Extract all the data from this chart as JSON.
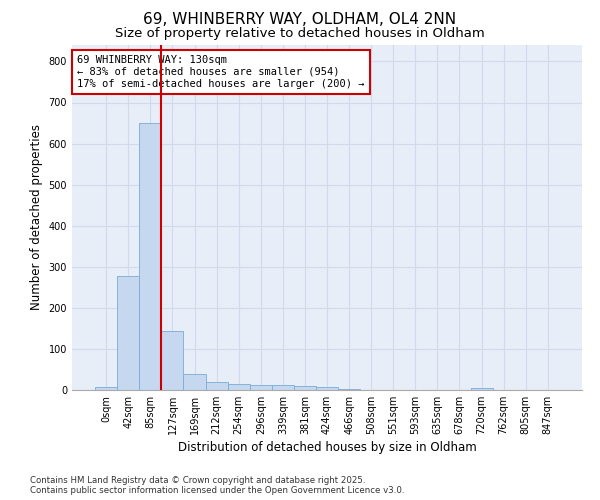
{
  "title1": "69, WHINBERRY WAY, OLDHAM, OL4 2NN",
  "title2": "Size of property relative to detached houses in Oldham",
  "xlabel": "Distribution of detached houses by size in Oldham",
  "ylabel": "Number of detached properties",
  "categories": [
    "0sqm",
    "42sqm",
    "85sqm",
    "127sqm",
    "169sqm",
    "212sqm",
    "254sqm",
    "296sqm",
    "339sqm",
    "381sqm",
    "424sqm",
    "466sqm",
    "508sqm",
    "551sqm",
    "593sqm",
    "635sqm",
    "678sqm",
    "720sqm",
    "762sqm",
    "805sqm",
    "847sqm"
  ],
  "values": [
    8,
    278,
    650,
    143,
    38,
    20,
    14,
    13,
    13,
    10,
    7,
    2,
    1,
    0,
    0,
    0,
    0,
    4,
    0,
    0,
    0
  ],
  "bar_color": "#c5d8f0",
  "bar_edgecolor": "#7bacd4",
  "vline_color": "#cc0000",
  "vline_index": 2.5,
  "annotation_text": "69 WHINBERRY WAY: 130sqm\n← 83% of detached houses are smaller (954)\n17% of semi-detached houses are larger (200) →",
  "annotation_box_edgecolor": "#cc0000",
  "ylim": [
    0,
    840
  ],
  "yticks": [
    0,
    100,
    200,
    300,
    400,
    500,
    600,
    700,
    800
  ],
  "grid_color": "#d0daea",
  "background_color": "#e8eef8",
  "footnote": "Contains HM Land Registry data © Crown copyright and database right 2025.\nContains public sector information licensed under the Open Government Licence v3.0.",
  "title_fontsize": 11,
  "subtitle_fontsize": 9.5,
  "tick_fontsize": 7,
  "label_fontsize": 8.5,
  "annot_fontsize": 7.5,
  "footnote_fontsize": 6.2
}
